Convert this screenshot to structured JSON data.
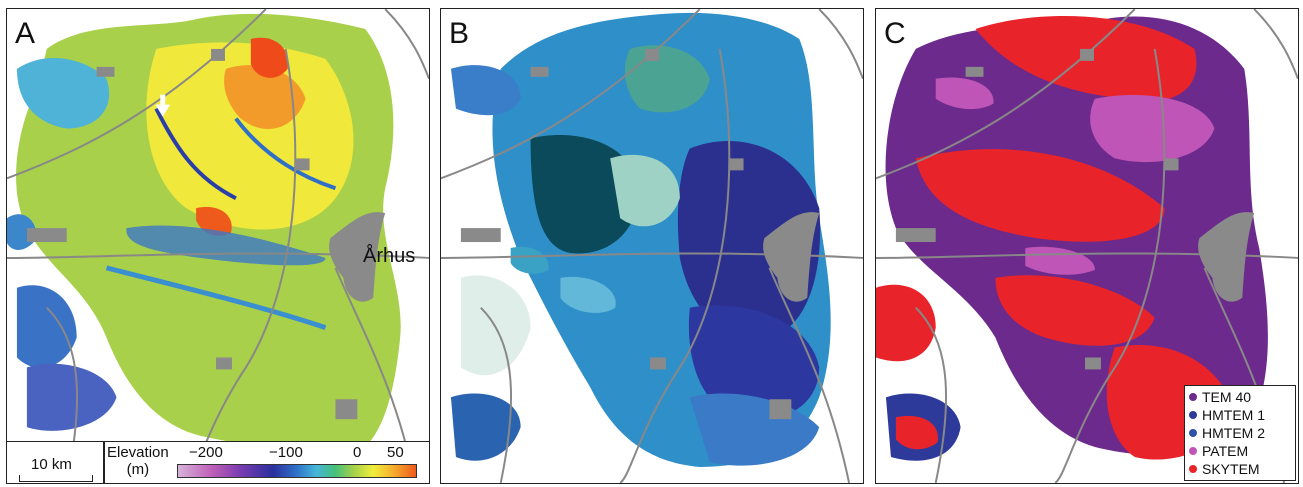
{
  "panels": [
    {
      "label": "A",
      "city_label": "Århus"
    },
    {
      "label": "B"
    },
    {
      "label": "C"
    }
  ],
  "scale": {
    "text": "10 km"
  },
  "elevation": {
    "title_line1": "Elevation",
    "title_line2": "(m)",
    "ticks": [
      "−200",
      "−100",
      "0",
      "50"
    ]
  },
  "legend": [
    {
      "label": "TEM 40",
      "color": "#6b2a8c"
    },
    {
      "label": "HMTEM 1",
      "color": "#2d3a9a"
    },
    {
      "label": "HMTEM 2",
      "color": "#2e52a8"
    },
    {
      "label": "PATEM",
      "color": "#c055b8"
    },
    {
      "label": "SKYTEM",
      "color": "#e8242a"
    }
  ],
  "colors": {
    "roads": "#888888",
    "cities": "#8a8a8a"
  }
}
